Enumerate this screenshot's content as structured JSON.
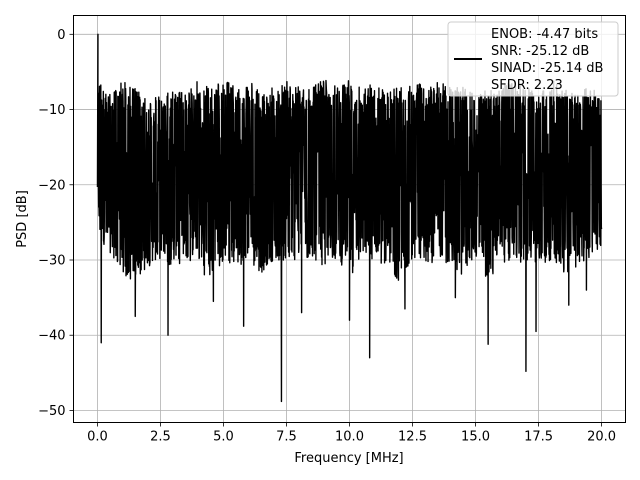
{
  "chart_data": {
    "type": "line",
    "xlabel": "Frequency [MHz]",
    "ylabel": "PSD [dB]",
    "xlim": [
      -0.95,
      20.95
    ],
    "ylim": [
      -51.6,
      2.5
    ],
    "xticks": [
      0.0,
      2.5,
      5.0,
      7.5,
      10.0,
      12.5,
      15.0,
      17.5,
      20.0
    ],
    "xtick_labels": [
      "0.0",
      "2.5",
      "5.0",
      "7.5",
      "10.0",
      "12.5",
      "15.0",
      "17.5",
      "20.0"
    ],
    "yticks": [
      0,
      -10,
      -20,
      -30,
      -40,
      -50
    ],
    "ytick_labels": [
      "0",
      "−10",
      "−20",
      "−30",
      "−40",
      "−50"
    ],
    "grid": true,
    "legend": {
      "placement": "top-right",
      "lines": [
        "ENOB: -4.47 bits",
        "SNR: -25.12 dB",
        "SINAD: -25.14 dB",
        "SFDR: 2.23"
      ]
    },
    "series": [
      {
        "color": "#000000",
        "x_range": [
          0.0,
          20.0
        ],
        "envelope_upper": [
          -5,
          -8,
          -6,
          -7,
          -9,
          -8,
          -7,
          -8,
          -6,
          -7,
          -6,
          -7,
          -6,
          -8,
          -7,
          -6,
          -7,
          -7,
          -6,
          -7,
          -6,
          -7,
          -6,
          -7,
          -7,
          -6,
          -7,
          -6,
          -7,
          -7,
          -8,
          -7,
          -7,
          -6,
          -7,
          -8,
          -6,
          -7,
          -8,
          -7,
          -8
        ],
        "envelope_lower_typical": [
          -27,
          -29,
          -32,
          -33,
          -31,
          -30,
          -31,
          -30,
          -31,
          -33,
          -30,
          -31,
          -30,
          -32,
          -30,
          -31,
          -30,
          -30,
          -31,
          -30,
          -32,
          -31,
          -30,
          -31,
          -33,
          -30,
          -31,
          -30,
          -31,
          -32,
          -30,
          -33,
          -30,
          -31,
          -30,
          -31,
          -30,
          -32,
          -31,
          -30,
          -28
        ],
        "peak": {
          "x": 0.02,
          "y": 0.0
        },
        "notable_minima": [
          {
            "x": 0.15,
            "y": -41.0
          },
          {
            "x": 1.5,
            "y": -37.5
          },
          {
            "x": 2.8,
            "y": -40.0
          },
          {
            "x": 4.6,
            "y": -35.5
          },
          {
            "x": 5.8,
            "y": -38.8
          },
          {
            "x": 7.3,
            "y": -48.8
          },
          {
            "x": 8.1,
            "y": -37.0
          },
          {
            "x": 10.0,
            "y": -38.0
          },
          {
            "x": 10.8,
            "y": -43.0
          },
          {
            "x": 12.2,
            "y": -36.5
          },
          {
            "x": 14.2,
            "y": -35.0
          },
          {
            "x": 15.5,
            "y": -41.2
          },
          {
            "x": 17.0,
            "y": -44.8
          },
          {
            "x": 17.4,
            "y": -39.5
          },
          {
            "x": 18.7,
            "y": -36.0
          },
          {
            "x": 19.4,
            "y": -34.0
          }
        ]
      }
    ]
  }
}
